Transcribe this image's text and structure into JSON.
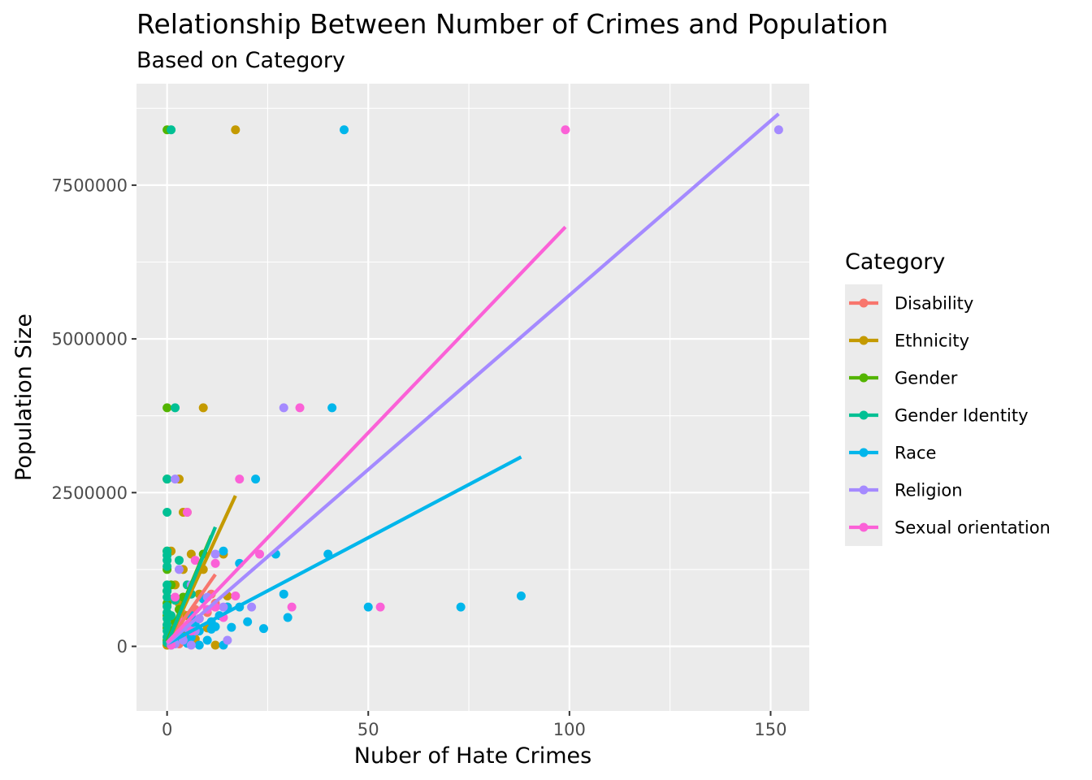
{
  "chart_data": {
    "type": "scatter",
    "title": "Relationship Between Number of Crimes and Population",
    "subtitle": "Based on Category",
    "xlabel": "Nuber of Hate Crimes",
    "ylabel": "Population Size",
    "xlim": [
      -7.6,
      159.6
    ],
    "ylim": [
      -1050000,
      9150000
    ],
    "x_ticks": [
      0,
      50,
      100,
      150
    ],
    "x_tick_labels": [
      "0",
      "50",
      "100",
      "150"
    ],
    "y_ticks": [
      0,
      2500000,
      5000000,
      7500000
    ],
    "y_tick_labels": [
      "0",
      "2500000",
      "5000000",
      "7500000"
    ],
    "grid": true,
    "legend": {
      "title": "Category",
      "position": "right"
    },
    "series": [
      {
        "name": "Disability",
        "color": "#F8766D",
        "points": [
          [
            0,
            20000
          ],
          [
            0,
            80000
          ],
          [
            1,
            120000
          ],
          [
            1,
            40000
          ],
          [
            2,
            300000
          ],
          [
            3,
            150000
          ],
          [
            4,
            520000
          ],
          [
            5,
            200000
          ],
          [
            6,
            380000
          ],
          [
            7,
            600000
          ],
          [
            8,
            450000
          ],
          [
            10,
            550000
          ],
          [
            11,
            850000
          ],
          [
            12,
            700000
          ],
          [
            0,
            350000
          ],
          [
            2,
            90000
          ],
          [
            3,
            40000
          ]
        ],
        "fit": [
          [
            0,
            50000
          ],
          [
            12,
            1170000
          ]
        ]
      },
      {
        "name": "Ethnicity",
        "color": "#C49A00",
        "points": [
          [
            17,
            8400000
          ],
          [
            9,
            3880000
          ],
          [
            3,
            2720000
          ],
          [
            4,
            2180000
          ],
          [
            5,
            2180000
          ],
          [
            1,
            1550000
          ],
          [
            6,
            1500000
          ],
          [
            14,
            1500000
          ],
          [
            4,
            1250000
          ],
          [
            9,
            1250000
          ],
          [
            2,
            1000000
          ],
          [
            15,
            820000
          ],
          [
            8,
            850000
          ],
          [
            3,
            700000
          ],
          [
            12,
            640000
          ],
          [
            15,
            640000
          ],
          [
            5,
            500000
          ],
          [
            10,
            300000
          ],
          [
            2,
            200000
          ],
          [
            7,
            120000
          ],
          [
            12,
            20000
          ],
          [
            0,
            20000
          ],
          [
            1,
            80000
          ],
          [
            4,
            250000
          ]
        ],
        "fit": [
          [
            0,
            40000
          ],
          [
            17,
            2450000
          ]
        ]
      },
      {
        "name": "Gender",
        "color": "#53B400",
        "points": [
          [
            0,
            8400000
          ],
          [
            0,
            3880000
          ],
          [
            0,
            2720000
          ],
          [
            0,
            1550000
          ],
          [
            0,
            1250000
          ],
          [
            0,
            900000
          ],
          [
            0,
            700000
          ],
          [
            0,
            500000
          ],
          [
            0,
            300000
          ],
          [
            0,
            100000
          ],
          [
            1,
            200000
          ],
          [
            2,
            400000
          ],
          [
            3,
            600000
          ],
          [
            4,
            800000
          ],
          [
            9,
            1500000
          ],
          [
            1,
            1000000
          ],
          [
            2,
            50000
          ]
        ],
        "fit": [
          [
            0,
            80000
          ],
          [
            11,
            1800000
          ]
        ]
      },
      {
        "name": "Gender Identity",
        "color": "#00C094",
        "points": [
          [
            1,
            8400000
          ],
          [
            2,
            3880000
          ],
          [
            0,
            2720000
          ],
          [
            0,
            2180000
          ],
          [
            0,
            1550000
          ],
          [
            0,
            1480000
          ],
          [
            0,
            1400000
          ],
          [
            0,
            1300000
          ],
          [
            0,
            1000000
          ],
          [
            0,
            900000
          ],
          [
            0,
            800000
          ],
          [
            0,
            650000
          ],
          [
            0,
            550000
          ],
          [
            0,
            450000
          ],
          [
            0,
            350000
          ],
          [
            0,
            250000
          ],
          [
            0,
            150000
          ],
          [
            0,
            60000
          ],
          [
            1,
            500000
          ],
          [
            2,
            750000
          ],
          [
            3,
            1400000
          ],
          [
            5,
            1000000
          ],
          [
            6,
            850000
          ],
          [
            1,
            30000
          ]
        ],
        "fit": [
          [
            0,
            40000
          ],
          [
            12,
            1940000
          ]
        ]
      },
      {
        "name": "Race",
        "color": "#00B6EB",
        "points": [
          [
            44,
            8400000
          ],
          [
            41,
            3880000
          ],
          [
            22,
            2720000
          ],
          [
            27,
            1500000
          ],
          [
            40,
            1500000
          ],
          [
            14,
            1550000
          ],
          [
            18,
            1350000
          ],
          [
            88,
            820000
          ],
          [
            73,
            640000
          ],
          [
            50,
            640000
          ],
          [
            29,
            850000
          ],
          [
            30,
            470000
          ],
          [
            20,
            400000
          ],
          [
            24,
            290000
          ],
          [
            16,
            310000
          ],
          [
            14,
            20000
          ],
          [
            8,
            20000
          ],
          [
            12,
            320000
          ],
          [
            11,
            280000
          ],
          [
            13,
            500000
          ],
          [
            15,
            640000
          ],
          [
            18,
            640000
          ],
          [
            9,
            770000
          ],
          [
            10,
            100000
          ],
          [
            6,
            150000
          ],
          [
            5,
            50000
          ],
          [
            4,
            300000
          ],
          [
            3,
            200000
          ],
          [
            2,
            80000
          ],
          [
            1,
            20000
          ],
          [
            7,
            350000
          ],
          [
            8,
            250000
          ],
          [
            11,
            400000
          ],
          [
            6,
            500000
          ]
        ],
        "fit": [
          [
            0,
            40000
          ],
          [
            88,
            3080000
          ]
        ]
      },
      {
        "name": "Religion",
        "color": "#A58AFF",
        "points": [
          [
            152,
            8400000
          ],
          [
            29,
            3880000
          ],
          [
            2,
            2720000
          ],
          [
            3,
            1250000
          ],
          [
            12,
            1500000
          ],
          [
            21,
            640000
          ],
          [
            15,
            100000
          ],
          [
            6,
            1000000
          ],
          [
            10,
            800000
          ],
          [
            8,
            450000
          ],
          [
            6,
            20000
          ],
          [
            5,
            300000
          ],
          [
            4,
            100000
          ],
          [
            2,
            40000
          ],
          [
            14,
            640000
          ],
          [
            7,
            250000
          ]
        ],
        "fit": [
          [
            0,
            40000
          ],
          [
            152,
            8660000
          ]
        ]
      },
      {
        "name": "Sexual orientation",
        "color": "#FB61D7",
        "points": [
          [
            99,
            8400000
          ],
          [
            33,
            3880000
          ],
          [
            18,
            2720000
          ],
          [
            5,
            2180000
          ],
          [
            23,
            1500000
          ],
          [
            12,
            1350000
          ],
          [
            53,
            640000
          ],
          [
            31,
            640000
          ],
          [
            17,
            820000
          ],
          [
            14,
            470000
          ],
          [
            7,
            1400000
          ],
          [
            2,
            800000
          ],
          [
            3,
            400000
          ],
          [
            1,
            20000
          ],
          [
            12,
            640000
          ],
          [
            10,
            600000
          ],
          [
            6,
            250000
          ]
        ],
        "fit": [
          [
            0,
            60000
          ],
          [
            99,
            6820000
          ]
        ]
      }
    ]
  }
}
